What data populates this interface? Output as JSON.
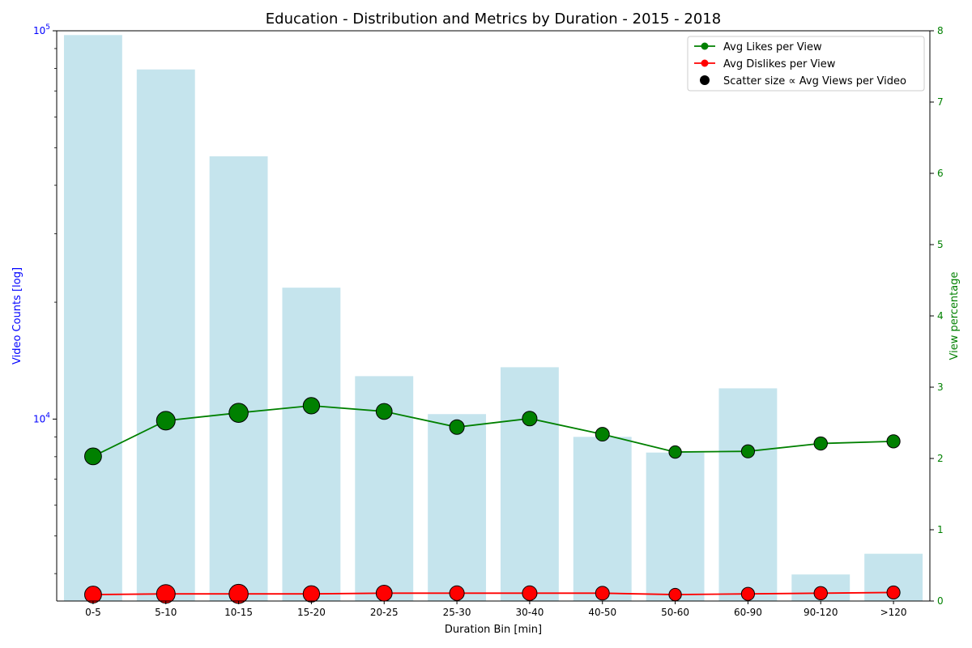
{
  "chart_data": {
    "type": "bar",
    "title": "Education - Distribution and Metrics by Duration - 2015 - 2018",
    "xlabel": "Duration Bin [min]",
    "ylabel_left": "Video Counts [log]",
    "ylabel_right": "View percentage",
    "categories": [
      "0-5",
      "5-10",
      "10-15",
      "15-20",
      "20-25",
      "25-30",
      "30-40",
      "40-50",
      "50-60",
      "60-90",
      "90-120",
      ">120"
    ],
    "left_axis": {
      "scale": "log",
      "ylim": [
        3400,
        100000
      ],
      "major_ticks": [
        {
          "value": 10000,
          "base": "10",
          "exp": "4"
        },
        {
          "value": 100000,
          "base": "10",
          "exp": "5"
        }
      ],
      "minor_ticks": [
        4000,
        5000,
        6000,
        7000,
        8000,
        9000,
        20000,
        30000,
        40000,
        50000,
        60000,
        70000,
        80000,
        90000
      ]
    },
    "right_axis": {
      "ylim": [
        0,
        8
      ],
      "ticks": [
        "0",
        "1",
        "2",
        "3",
        "4",
        "5",
        "6",
        "7",
        "8"
      ]
    },
    "bar_values": [
      97500,
      79500,
      47500,
      21800,
      12900,
      10300,
      13600,
      9000,
      8200,
      12000,
      3980,
      4500
    ],
    "series": [
      {
        "name": "Avg Likes per View",
        "values": [
          2.03,
          2.53,
          2.64,
          2.74,
          2.66,
          2.44,
          2.56,
          2.34,
          2.09,
          2.1,
          2.21,
          2.24
        ],
        "sizes": [
          0.8,
          1.0,
          1.05,
          0.75,
          0.7,
          0.55,
          0.55,
          0.45,
          0.3,
          0.38,
          0.4,
          0.38
        ]
      },
      {
        "name": "Avg Dislikes per View",
        "values": [
          0.09,
          0.1,
          0.1,
          0.1,
          0.11,
          0.11,
          0.11,
          0.11,
          0.09,
          0.1,
          0.11,
          0.12
        ],
        "sizes": [
          0.8,
          1.0,
          1.05,
          0.75,
          0.7,
          0.55,
          0.55,
          0.45,
          0.3,
          0.38,
          0.4,
          0.38
        ]
      }
    ],
    "legend": {
      "placement": "top-right",
      "entries": [
        "Avg Likes per View",
        "Avg Dislikes per View",
        "Scatter size ∝ Avg Views per Video"
      ]
    },
    "colors": {
      "bar": "#add8e6",
      "likes": "#008000",
      "dislikes": "#ff0000",
      "left_axis": "#0000ff",
      "right_axis": "#008000",
      "marker_edge": "#000000"
    },
    "grid": false
  }
}
